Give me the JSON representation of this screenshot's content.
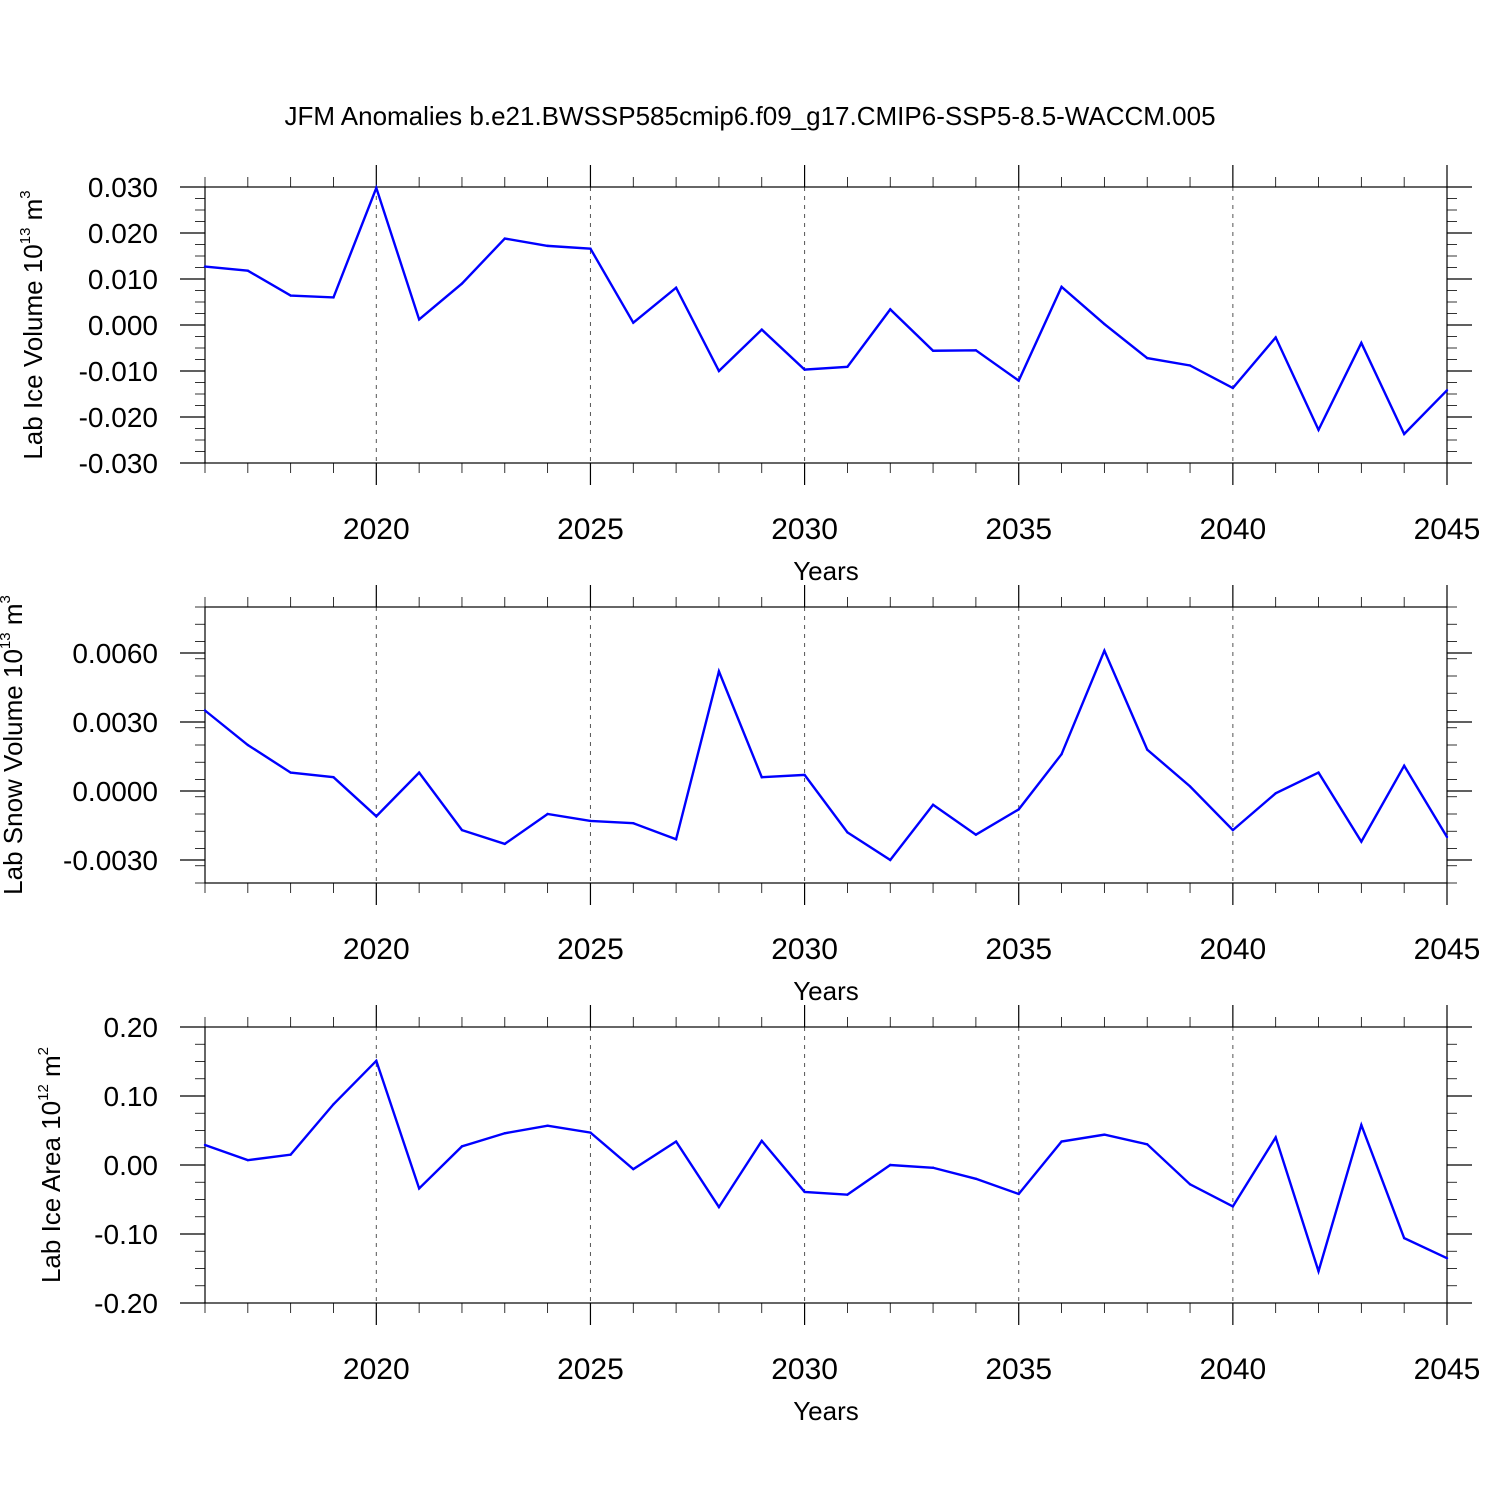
{
  "title": "JFM Anomalies b.e21.BWSSP585cmip6.f09_g17.CMIP6-SSP5-8.5-WACCM.005",
  "line_color": "#0000ff",
  "chart_data": [
    {
      "type": "line",
      "xlabel": "Years",
      "ylabel": "Lab Ice Volume 10",
      "ylabel_exponent": "13",
      "ylabel_unit": " m",
      "ylabel_unit_exponent": "3",
      "xlim": [
        2016,
        2045
      ],
      "ylim": [
        -0.03,
        0.03
      ],
      "yticks": [
        0.03,
        0.02,
        0.01,
        0.0,
        -0.01,
        -0.02,
        -0.03
      ],
      "ytick_labels": [
        "0.030",
        "0.020",
        "0.010",
        "0.000",
        "-0.010",
        "-0.020",
        "-0.030"
      ],
      "xticks": [
        2020,
        2025,
        2030,
        2035,
        2040,
        2045
      ],
      "xtick_labels": [
        "2020",
        "2025",
        "2030",
        "2035",
        "2040",
        "2045"
      ],
      "grid": "dashed vertical at major x ticks",
      "x": [
        2016,
        2017,
        2018,
        2019,
        2020,
        2021,
        2022,
        2023,
        2024,
        2025,
        2026,
        2027,
        2028,
        2029,
        2030,
        2031,
        2032,
        2033,
        2034,
        2035,
        2036,
        2037,
        2038,
        2039,
        2040,
        2041,
        2042,
        2043,
        2044,
        2045
      ],
      "values": [
        0.0127,
        0.0118,
        0.0064,
        0.006,
        0.0298,
        0.0012,
        0.009,
        0.0188,
        0.0172,
        0.0166,
        0.0005,
        0.0081,
        -0.01,
        -0.001,
        -0.0097,
        -0.0091,
        0.0034,
        -0.0056,
        -0.0055,
        -0.0121,
        0.0083,
        0.0002,
        -0.0072,
        -0.0088,
        -0.0137,
        -0.0027,
        -0.0228,
        -0.0039,
        -0.0237,
        -0.0142
      ]
    },
    {
      "type": "line",
      "xlabel": "Years",
      "ylabel": "Lab Snow Volume 10",
      "ylabel_exponent": "13",
      "ylabel_unit": " m",
      "ylabel_unit_exponent": "3",
      "xlim": [
        2016,
        2045
      ],
      "ylim": [
        -0.004,
        0.008
      ],
      "yticks": [
        0.006,
        0.003,
        0.0,
        -0.003
      ],
      "ytick_labels": [
        "0.0060",
        "0.0030",
        "0.0000",
        "-0.0030"
      ],
      "xticks": [
        2020,
        2025,
        2030,
        2035,
        2040,
        2045
      ],
      "xtick_labels": [
        "2020",
        "2025",
        "2030",
        "2035",
        "2040",
        "2045"
      ],
      "grid": "dashed vertical at major x ticks",
      "x": [
        2016,
        2017,
        2018,
        2019,
        2020,
        2021,
        2022,
        2023,
        2024,
        2025,
        2026,
        2027,
        2028,
        2029,
        2030,
        2031,
        2032,
        2033,
        2034,
        2035,
        2036,
        2037,
        2038,
        2039,
        2040,
        2041,
        2042,
        2043,
        2044,
        2045
      ],
      "values": [
        0.0035,
        0.002,
        0.0008,
        0.0006,
        -0.0011,
        0.0008,
        -0.0017,
        -0.0023,
        -0.001,
        -0.0013,
        -0.0014,
        -0.0021,
        0.0052,
        0.0006,
        0.0007,
        -0.0018,
        -0.003,
        -0.0006,
        -0.0019,
        -0.0008,
        0.0016,
        0.0061,
        0.0018,
        0.0002,
        -0.0017,
        -0.0001,
        0.0008,
        -0.0022,
        0.0011,
        -0.002
      ]
    },
    {
      "type": "line",
      "xlabel": "Years",
      "ylabel": "Lab Ice Area 10",
      "ylabel_exponent": "12",
      "ylabel_unit": " m",
      "ylabel_unit_exponent": "2",
      "xlim": [
        2016,
        2045
      ],
      "ylim": [
        -0.2,
        0.2
      ],
      "yticks": [
        0.2,
        0.1,
        0.0,
        -0.1,
        -0.2
      ],
      "ytick_labels": [
        "0.20",
        "0.10",
        "0.00",
        "-0.10",
        "-0.20"
      ],
      "xticks": [
        2020,
        2025,
        2030,
        2035,
        2040,
        2045
      ],
      "xtick_labels": [
        "2020",
        "2025",
        "2030",
        "2035",
        "2040",
        "2045"
      ],
      "grid": "dashed vertical at major x ticks",
      "x": [
        2016,
        2017,
        2018,
        2019,
        2020,
        2021,
        2022,
        2023,
        2024,
        2025,
        2026,
        2027,
        2028,
        2029,
        2030,
        2031,
        2032,
        2033,
        2034,
        2035,
        2036,
        2037,
        2038,
        2039,
        2040,
        2041,
        2042,
        2043,
        2044,
        2045
      ],
      "values": [
        0.029,
        0.007,
        0.015,
        0.088,
        0.151,
        -0.034,
        0.027,
        0.046,
        0.057,
        0.047,
        -0.006,
        0.034,
        -0.061,
        0.035,
        -0.039,
        -0.043,
        0.0,
        -0.004,
        -0.02,
        -0.042,
        0.034,
        0.044,
        0.03,
        -0.028,
        -0.06,
        0.04,
        -0.154,
        0.058,
        -0.106,
        -0.135
      ]
    }
  ]
}
